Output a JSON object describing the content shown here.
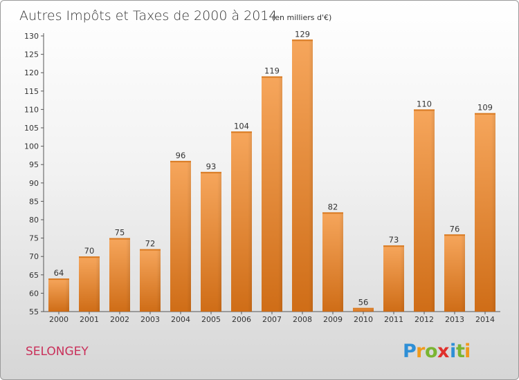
{
  "chart_data": {
    "type": "bar",
    "title": "Autres Impôts et Taxes de 2000 à 2014",
    "subtitle": "(en milliers d'€)",
    "xlabel": "",
    "ylabel": "",
    "categories": [
      "2000",
      "2001",
      "2002",
      "2003",
      "2004",
      "2005",
      "2006",
      "2007",
      "2008",
      "2009",
      "2010",
      "2011",
      "2012",
      "2013",
      "2014"
    ],
    "values": [
      64,
      70,
      75,
      72,
      96,
      93,
      104,
      119,
      129,
      82,
      56,
      73,
      110,
      76,
      109
    ],
    "ylim": [
      55,
      130
    ],
    "yticks": [
      55,
      60,
      65,
      70,
      75,
      80,
      85,
      90,
      95,
      100,
      105,
      110,
      115,
      120,
      125,
      130
    ],
    "grid": false,
    "bar_color": "#f0923a"
  },
  "footer": {
    "commune": "SELONGEY",
    "brand": "Proxiti"
  }
}
